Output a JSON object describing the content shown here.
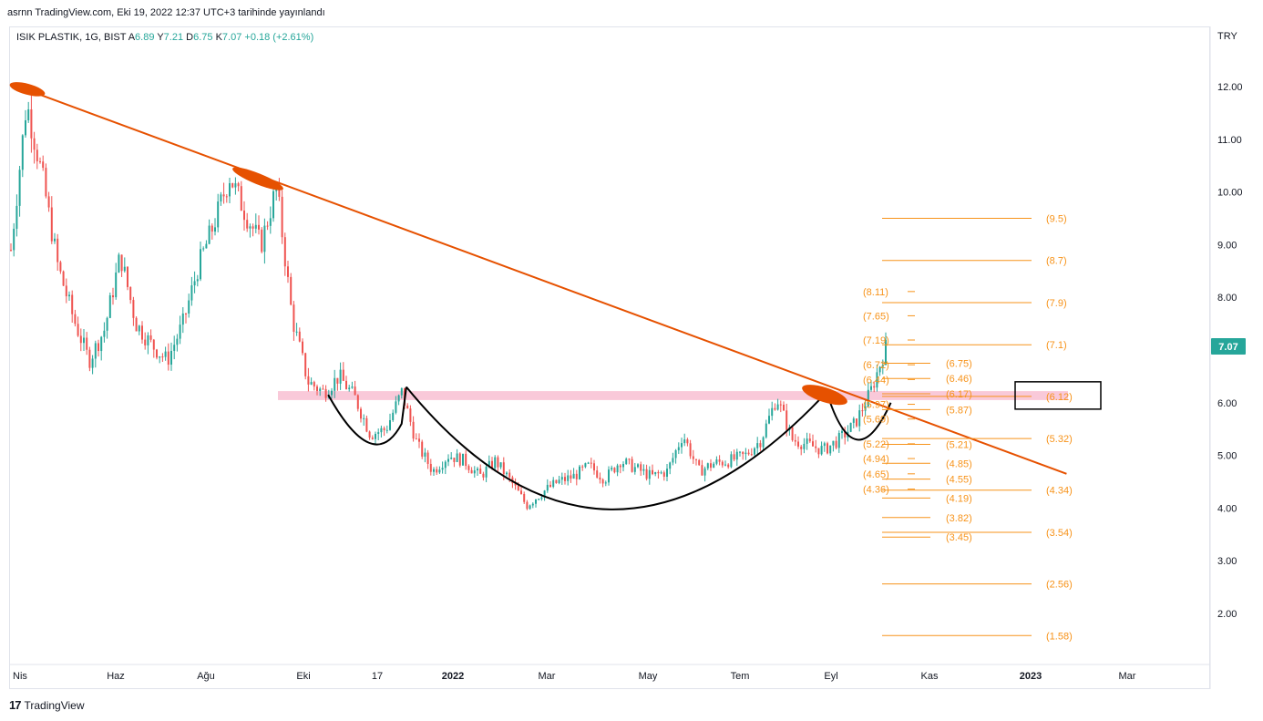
{
  "header": {
    "published": "asrnn TradingView.com, Eki 19, 2022 12:37 UTC+3 tarihinde yayınlandı"
  },
  "legend": {
    "symbol": "ISIK PLASTIK, 1G, BIST",
    "open_label": "A",
    "open": "6.89",
    "high_label": "Y",
    "high": "7.21",
    "low_label": "D",
    "low": "6.75",
    "close_label": "K",
    "close": "7.07",
    "change": "+0.18 (+2.61%)"
  },
  "currency": "TRY",
  "price_badge": "7.07",
  "brand": {
    "mark": "17",
    "name": "TradingView"
  },
  "colors": {
    "up": "#26a69a",
    "down": "#ef5350",
    "trendline": "#e65100",
    "fib": "#f7931a",
    "zone": "#f8bbd0",
    "pattern": "#000000"
  },
  "chart_data": {
    "type": "candlestick",
    "y_axis_ticks": [
      "12.00",
      "11.00",
      "10.00",
      "9.00",
      "8.00",
      "7.00",
      "6.00",
      "5.00",
      "4.00",
      "3.00",
      "2.00"
    ],
    "x_axis_ticks": [
      "Nis",
      "Haz",
      "Ağu",
      "Eki",
      "17",
      "2022",
      "Mar",
      "May",
      "Tem",
      "Eyl",
      "Kas",
      "2023",
      "Mar"
    ],
    "ylim": [
      1.0,
      13.0
    ],
    "price_path": [
      {
        "t": 0,
        "v": 8.9
      },
      {
        "t": 1,
        "v": 11.7
      },
      {
        "t": 2,
        "v": 10.3
      },
      {
        "t": 3,
        "v": 8.6
      },
      {
        "t": 4,
        "v": 7.6
      },
      {
        "t": 5,
        "v": 6.8
      },
      {
        "t": 6,
        "v": 7.4
      },
      {
        "t": 7,
        "v": 8.8
      },
      {
        "t": 8,
        "v": 7.5
      },
      {
        "t": 9,
        "v": 7.1
      },
      {
        "t": 10,
        "v": 6.8
      },
      {
        "t": 11,
        "v": 7.5
      },
      {
        "t": 12,
        "v": 8.6
      },
      {
        "t": 13,
        "v": 9.4
      },
      {
        "t": 14,
        "v": 10.3
      },
      {
        "t": 15,
        "v": 9.6
      },
      {
        "t": 16,
        "v": 9.0
      },
      {
        "t": 17,
        "v": 10.1
      },
      {
        "t": 18,
        "v": 7.6
      },
      {
        "t": 19,
        "v": 6.4
      },
      {
        "t": 20,
        "v": 6.2
      },
      {
        "t": 21,
        "v": 6.5
      },
      {
        "t": 22,
        "v": 6.1
      },
      {
        "t": 23,
        "v": 5.4
      },
      {
        "t": 24,
        "v": 5.5
      },
      {
        "t": 25,
        "v": 6.2
      },
      {
        "t": 26,
        "v": 5.2
      },
      {
        "t": 27,
        "v": 4.7
      },
      {
        "t": 28,
        "v": 5.0
      },
      {
        "t": 29,
        "v": 4.9
      },
      {
        "t": 30,
        "v": 4.6
      },
      {
        "t": 31,
        "v": 4.9
      },
      {
        "t": 32,
        "v": 4.5
      },
      {
        "t": 33,
        "v": 4.05
      },
      {
        "t": 34,
        "v": 4.3
      },
      {
        "t": 35,
        "v": 4.5
      },
      {
        "t": 36,
        "v": 4.6
      },
      {
        "t": 37,
        "v": 4.8
      },
      {
        "t": 38,
        "v": 4.55
      },
      {
        "t": 39,
        "v": 4.9
      },
      {
        "t": 40,
        "v": 4.75
      },
      {
        "t": 41,
        "v": 4.6
      },
      {
        "t": 42,
        "v": 4.7
      },
      {
        "t": 43,
        "v": 5.4
      },
      {
        "t": 44,
        "v": 4.7
      },
      {
        "t": 45,
        "v": 4.85
      },
      {
        "t": 46,
        "v": 4.9
      },
      {
        "t": 47,
        "v": 5.0
      },
      {
        "t": 48,
        "v": 5.3
      },
      {
        "t": 49,
        "v": 6.1
      },
      {
        "t": 50,
        "v": 5.3
      },
      {
        "t": 51,
        "v": 5.2
      },
      {
        "t": 52,
        "v": 5.1
      },
      {
        "t": 53,
        "v": 5.3
      },
      {
        "t": 54,
        "v": 5.6
      },
      {
        "t": 55,
        "v": 6.2
      },
      {
        "t": 56,
        "v": 7.07
      }
    ],
    "last_price": 7.07,
    "fib_right_levels": [
      "(9.5)",
      "(8.7)",
      "(7.9)",
      "(7.1)",
      "(6.12)",
      "(5.32)",
      "(4.34)",
      "(3.54)",
      "(2.56)",
      "(1.58)"
    ],
    "fib_right_values": [
      9.5,
      8.7,
      7.9,
      7.1,
      6.12,
      5.32,
      4.34,
      3.54,
      2.56,
      1.58
    ],
    "fib_mid_levels": [
      "(6.75)",
      "(6.46)",
      "(6.17)",
      "(5.87)",
      "(5.21)",
      "(4.85)",
      "(4.55)",
      "(4.19)",
      "(3.82)",
      "(3.45)"
    ],
    "fib_mid_values": [
      6.75,
      6.46,
      6.17,
      5.87,
      5.21,
      4.85,
      4.55,
      4.19,
      3.82,
      3.45
    ],
    "fib_left_levels": [
      "(8.11)",
      "(7.65)",
      "(7.19)",
      "(6.72)",
      "(6.44)",
      "(5.97)",
      "(5.69)",
      "(5.22)",
      "(4.94)",
      "(4.65)",
      "(4.36)"
    ],
    "fib_left_values": [
      8.11,
      7.65,
      7.19,
      6.72,
      6.44,
      5.97,
      5.69,
      5.22,
      4.94,
      4.65,
      4.36
    ],
    "resistance_zone": [
      6.05,
      6.22
    ],
    "trendline": {
      "start": {
        "t": 0,
        "v": 12.05
      },
      "end": {
        "t": 59.5,
        "v": 4.65
      }
    },
    "boxed_level": "(6.12)"
  }
}
